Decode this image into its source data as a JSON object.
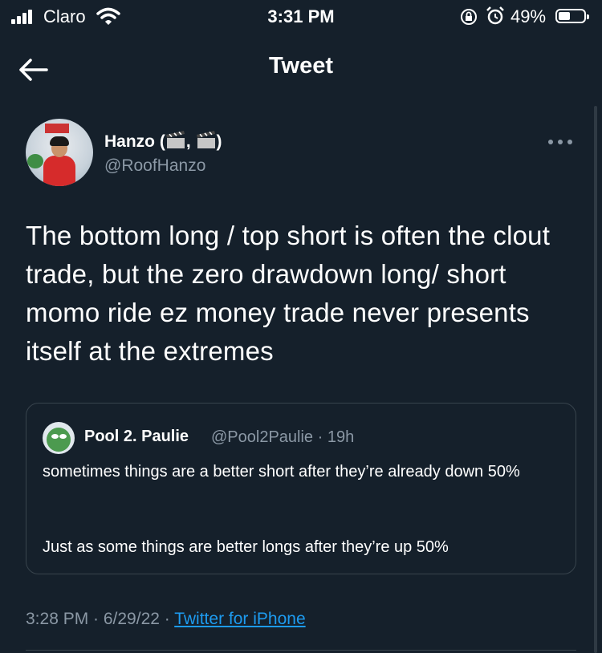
{
  "status_bar": {
    "carrier": "Claro",
    "time": "3:31 PM",
    "battery_percent": "49%"
  },
  "header": {
    "title": "Tweet",
    "back_icon": "arrow-left-icon"
  },
  "tweet": {
    "display_name": "Hanzo (",
    "display_name_sep": ", ",
    "display_name_end": ")",
    "handle": "@RoofHanzo",
    "text": "The bottom long / top short is often the clout trade, but the zero drawdown long/ short momo ride ez money trade never presents itself at the extremes",
    "timestamp": "3:28 PM · 6/29/22 · ",
    "source": "Twitter for iPhone"
  },
  "quoted_tweet": {
    "display_name": "Pool 2. Paulie",
    "meta": "@Pool2Paulie · 19h",
    "text": "sometimes things are a better short after they’re already down 50%",
    "text2": "Just as some things are better longs after they’re up 50%"
  },
  "colors": {
    "background": "#15202b",
    "secondary_text": "#8b98a5",
    "link": "#1d9bf0",
    "border": "#38444d"
  }
}
